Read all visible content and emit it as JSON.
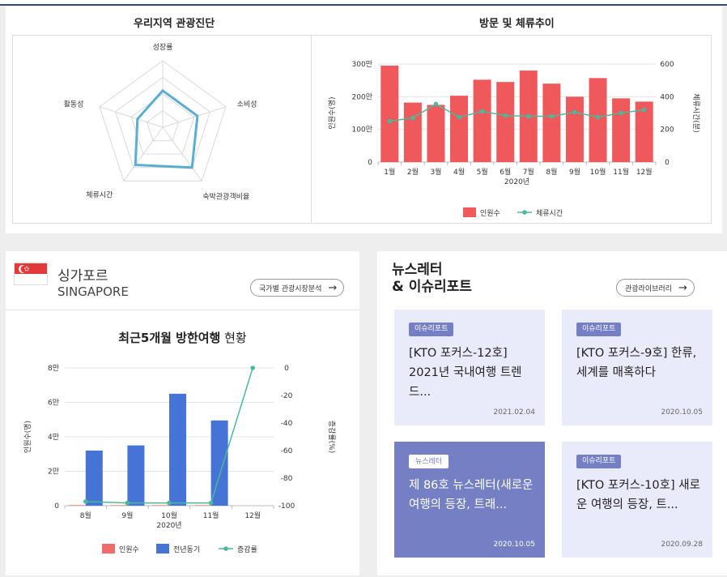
{
  "diagnosis": {
    "title": "우리지역 관광진단",
    "radar_labels": [
      "성장률",
      "소비성",
      "숙박관광객비율",
      "체류시간",
      "활동성"
    ],
    "radar_values": [
      0.55,
      0.55,
      0.75,
      0.7,
      0.4
    ],
    "radar_color": "#5aaed0"
  },
  "trend": {
    "title": "방문 및 체류추이",
    "chart_data": {
      "type": "bar",
      "categories": [
        "1월",
        "2월",
        "3월",
        "4월",
        "5월",
        "6월",
        "7월",
        "8월",
        "9월",
        "10월",
        "11월",
        "12월"
      ],
      "series": [
        {
          "name": "인원수",
          "type": "bar",
          "values": [
            295,
            182,
            175,
            203,
            252,
            245,
            280,
            240,
            200,
            257,
            195,
            185
          ],
          "color": "#f0595b"
        },
        {
          "name": "체류시간",
          "type": "line",
          "axis": "right",
          "values": [
            250,
            270,
            355,
            275,
            310,
            285,
            280,
            280,
            305,
            275,
            300,
            320
          ],
          "color": "#4cb89a"
        }
      ],
      "xlabel": "2020년",
      "ylabel": "인원수(명)",
      "y2label": "체류시간(분)",
      "ylim": [
        0,
        300
      ],
      "y2lim": [
        0,
        600
      ],
      "yticks": [
        "0",
        "100만",
        "200만",
        "300만"
      ],
      "y2ticks": [
        "0",
        "200",
        "400",
        "600"
      ],
      "grid": true,
      "legend_position": "bottom"
    }
  },
  "singapore": {
    "name_ko": "싱가포르",
    "name_en": "SINGAPORE",
    "analysis_button": "국가별 관광시장분석",
    "chart_title_bold": "최근5개월 방한여행",
    "chart_title_rest": " 현황",
    "chart_data": {
      "type": "bar",
      "categories": [
        "8월",
        "9월",
        "10월",
        "11월",
        "12월"
      ],
      "series": [
        {
          "name": "인원수",
          "type": "bar",
          "values": [
            0.03,
            0.03,
            0.03,
            0.03,
            0
          ],
          "color": "#f06b6b"
        },
        {
          "name": "전년동기",
          "type": "bar",
          "values": [
            3.2,
            3.5,
            6.5,
            4.95,
            0
          ],
          "color": "#4674d6"
        },
        {
          "name": "증감률",
          "type": "line",
          "axis": "right",
          "values": [
            -97,
            -98,
            -98,
            -98,
            0
          ],
          "color": "#4cb89a"
        }
      ],
      "xlabel": "2020년",
      "ylabel": "인원수(명)",
      "y2label": "증감률(%)",
      "ylim": [
        0,
        8
      ],
      "y2lim": [
        -100,
        0
      ],
      "yticks": [
        "0",
        "2만",
        "4만",
        "6만",
        "8만"
      ],
      "y2ticks": [
        "-100",
        "-80",
        "-60",
        "-40",
        "-20",
        "0"
      ],
      "grid": true,
      "legend_position": "bottom"
    }
  },
  "news": {
    "title_line1": "뉴스레터",
    "title_line2": "& 이슈리포트",
    "library_button": "관광라이브러리",
    "cards": [
      {
        "tag": "이슈리포트",
        "text": "[KTO 포커스-12호] 2021년 국내여행 트렌드...",
        "date": "2021.02.04"
      },
      {
        "tag": "이슈리포트",
        "text": "[KTO 포커스-9호] 한류, 세계를 매혹하다",
        "date": "2020.10.05"
      },
      {
        "tag": "뉴스레터",
        "text": "제 86호 뉴스레터(새로운 여행의 등장, 트래...",
        "date": "2020.10.05"
      },
      {
        "tag": "이슈리포트",
        "text": "[KTO 포커스-10호] 새로운 여행의 등장, 트...",
        "date": "2020.09.28"
      }
    ]
  }
}
